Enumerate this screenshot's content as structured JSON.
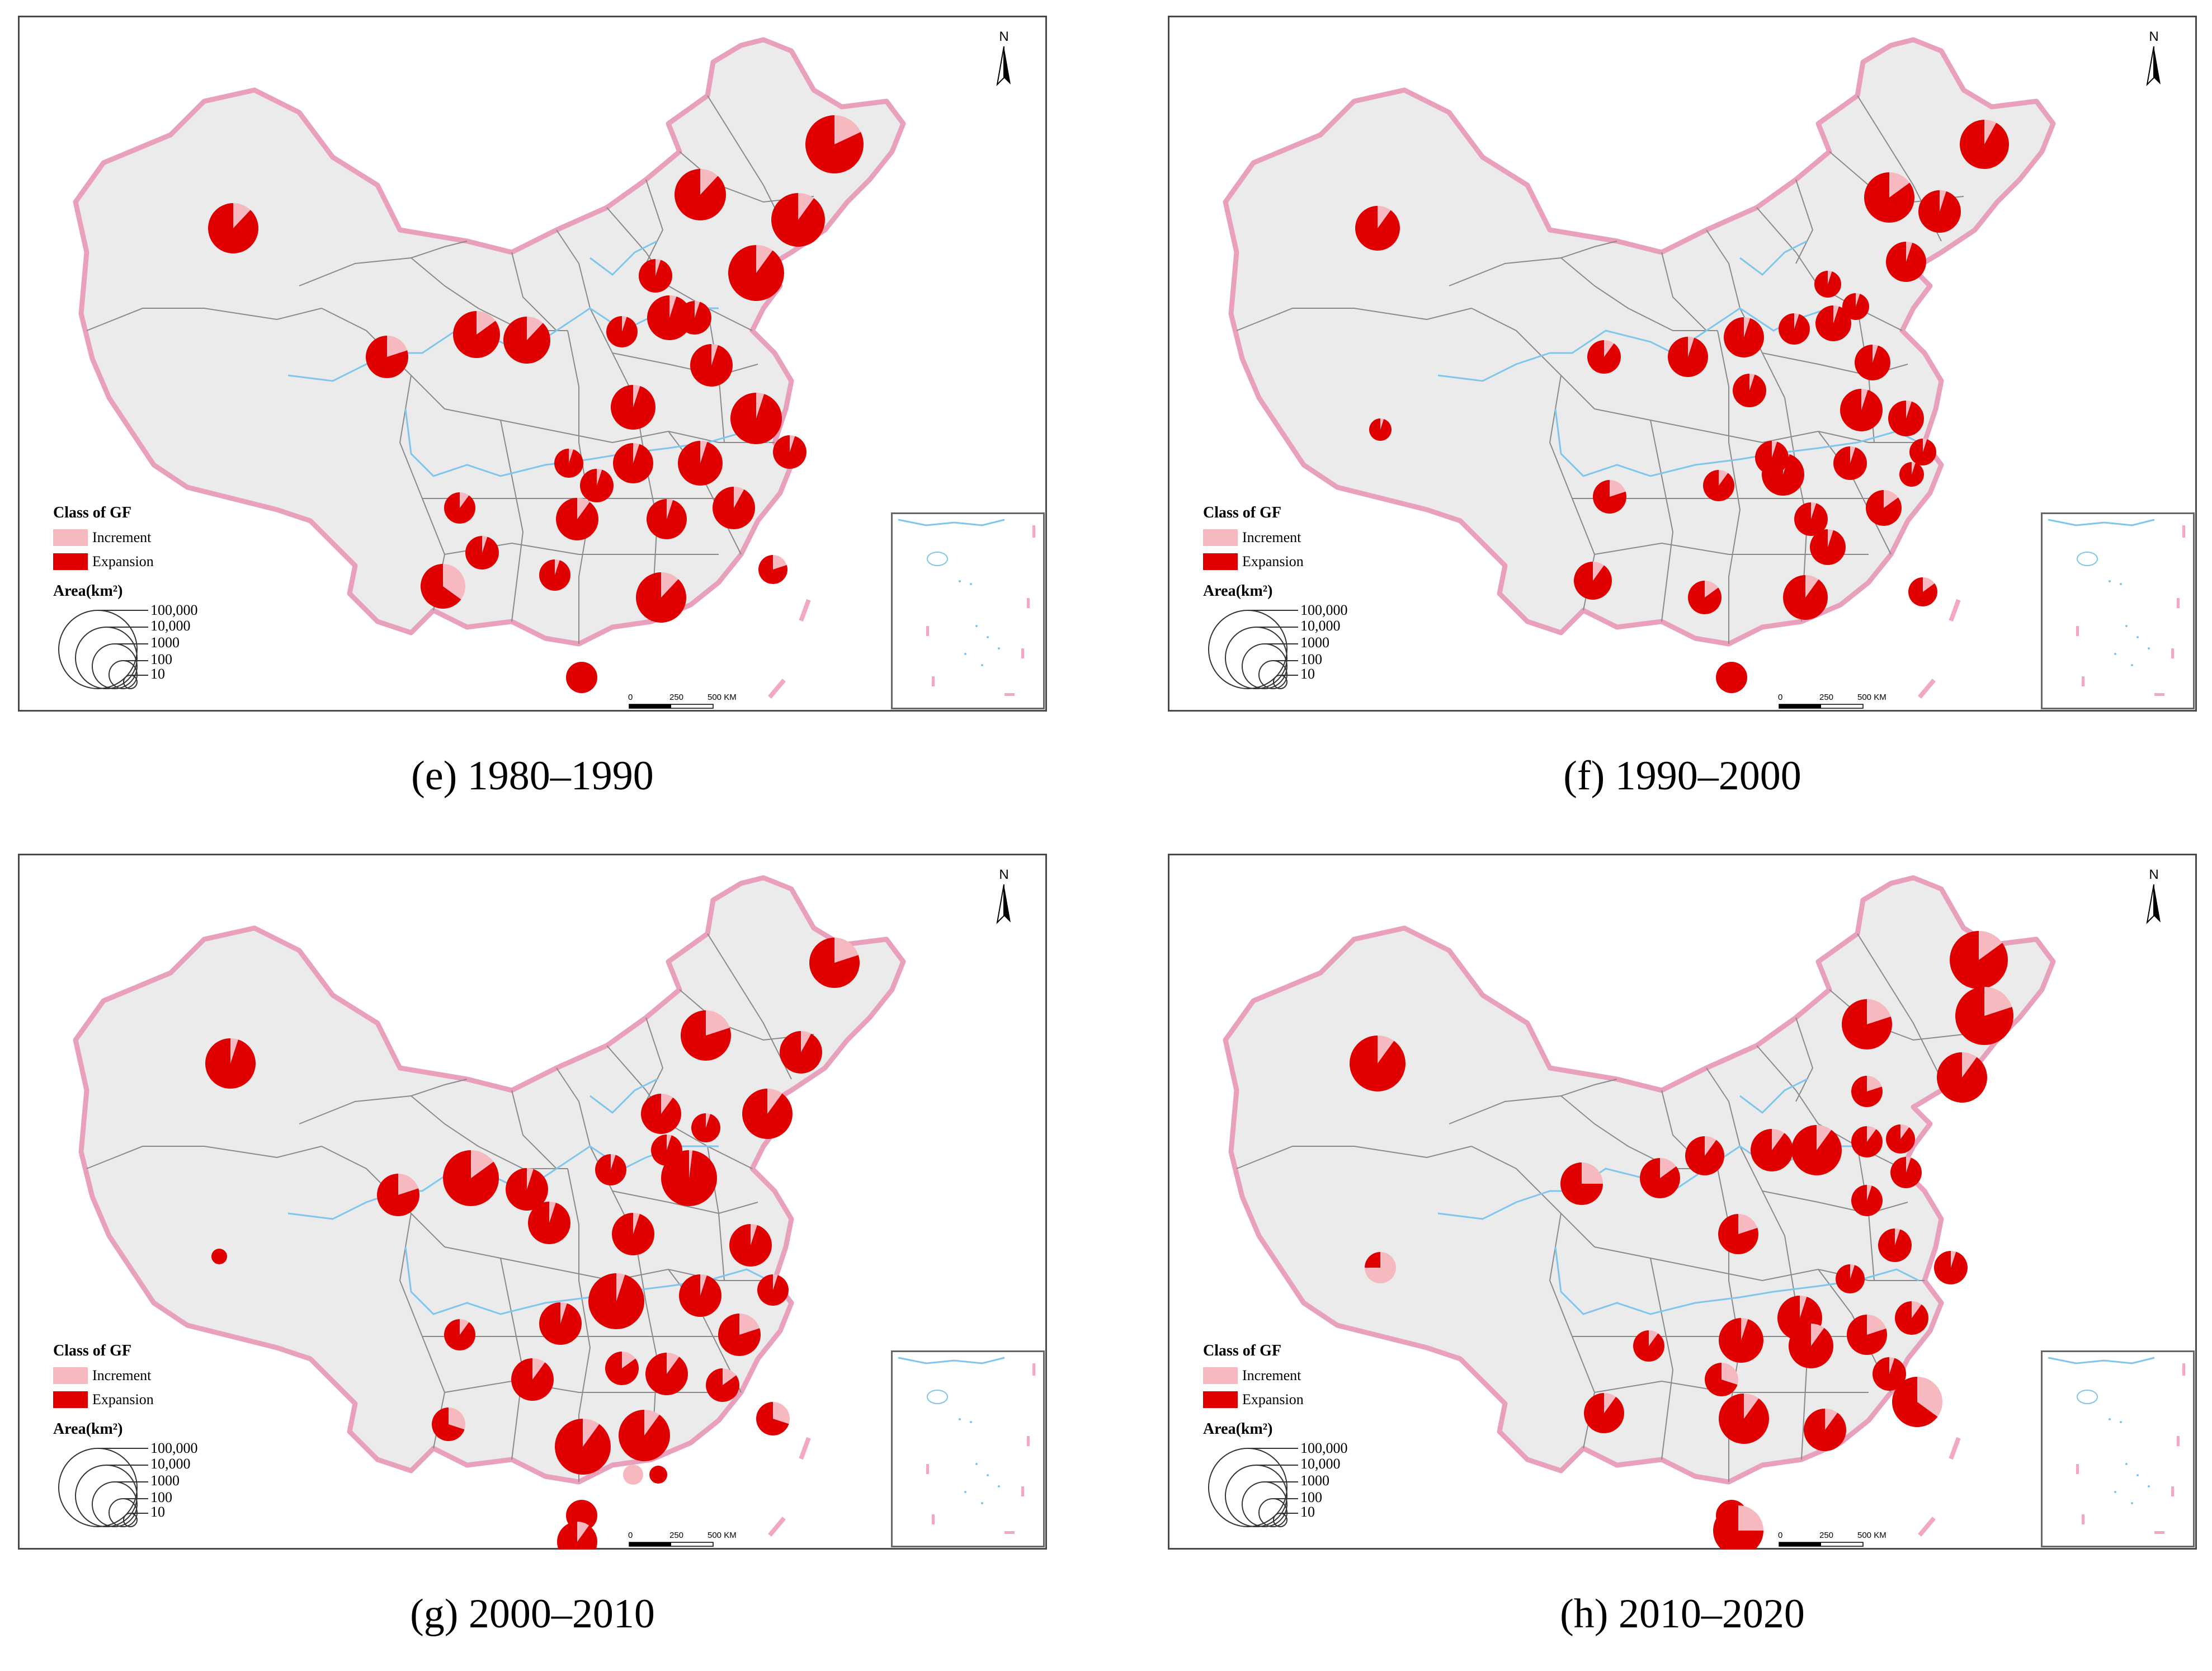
{
  "panels": [
    {
      "id": "e",
      "caption": "(e) 1980–1990"
    },
    {
      "id": "f",
      "caption": "(f) 1990–2000"
    },
    {
      "id": "g",
      "caption": "(g) 2000–2010"
    },
    {
      "id": "h",
      "caption": "(h) 2010–2020"
    }
  ],
  "legend": {
    "title": "Class of GF",
    "increment": "Increment",
    "expansion": "Expansion",
    "area_title": "Area(km²)",
    "sizes": [
      "100,000",
      "10,000",
      "1000",
      "100",
      "10"
    ]
  },
  "north_label": "N",
  "scale_labels": [
    "0",
    "250",
    "500 KM"
  ],
  "colors": {
    "increment": "#f7b9c0",
    "expansion": "#e00000",
    "land": "#ebebeb",
    "border": "#e9a0bd",
    "river": "#7fc6ec"
  }
}
